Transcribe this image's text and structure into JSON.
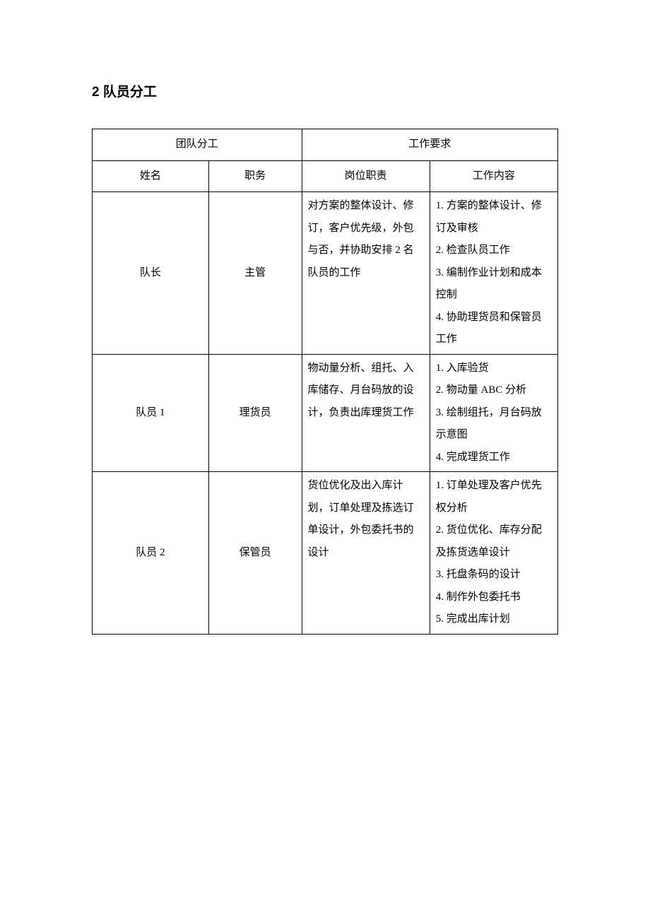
{
  "heading": "2 队员分工",
  "table": {
    "header_group_left": "团队分工",
    "header_group_right": "工作要求",
    "columns": {
      "name": "姓名",
      "role": "职务",
      "duty": "岗位职责",
      "content": "工作内容"
    },
    "rows": [
      {
        "name": "队长",
        "role": "主管",
        "duty": "对方案的整体设计、修订，客户优先级，外包与否，并协助安排 2 名队员的工作",
        "content": "1. 方案的整体设计、修订及审核\n2. 检查队员工作\n3. 编制作业计划和成本控制\n4. 协助理货员和保管员工作"
      },
      {
        "name": "队员 1",
        "role": "理货员",
        "duty": "物动量分析、组托、入库储存、月台码放的设计，负责出库理货工作",
        "content": "1. 入库验货\n2. 物动量 ABC 分析\n3. 绘制组托，月台码放示意图\n4. 完成理货工作"
      },
      {
        "name": "队员 2",
        "role": "保管员",
        "duty": "货位优化及出入库计划，订单处理及拣选订单设计，外包委托书的设计",
        "content": "1. 订单处理及客户优先权分析\n2. 货位优化、库存分配及拣货选单设计\n3. 托盘条码的设计\n4. 制作外包委托书\n5. 完成出库计划"
      }
    ],
    "styling": {
      "column_widths_pct": [
        25,
        20,
        27.5,
        27.5
      ],
      "border_color": "#000000",
      "background_color": "#ffffff",
      "text_color": "#000000",
      "font_size_pt": 11,
      "heading_font_size_pt": 14,
      "line_height": 2.1
    }
  }
}
